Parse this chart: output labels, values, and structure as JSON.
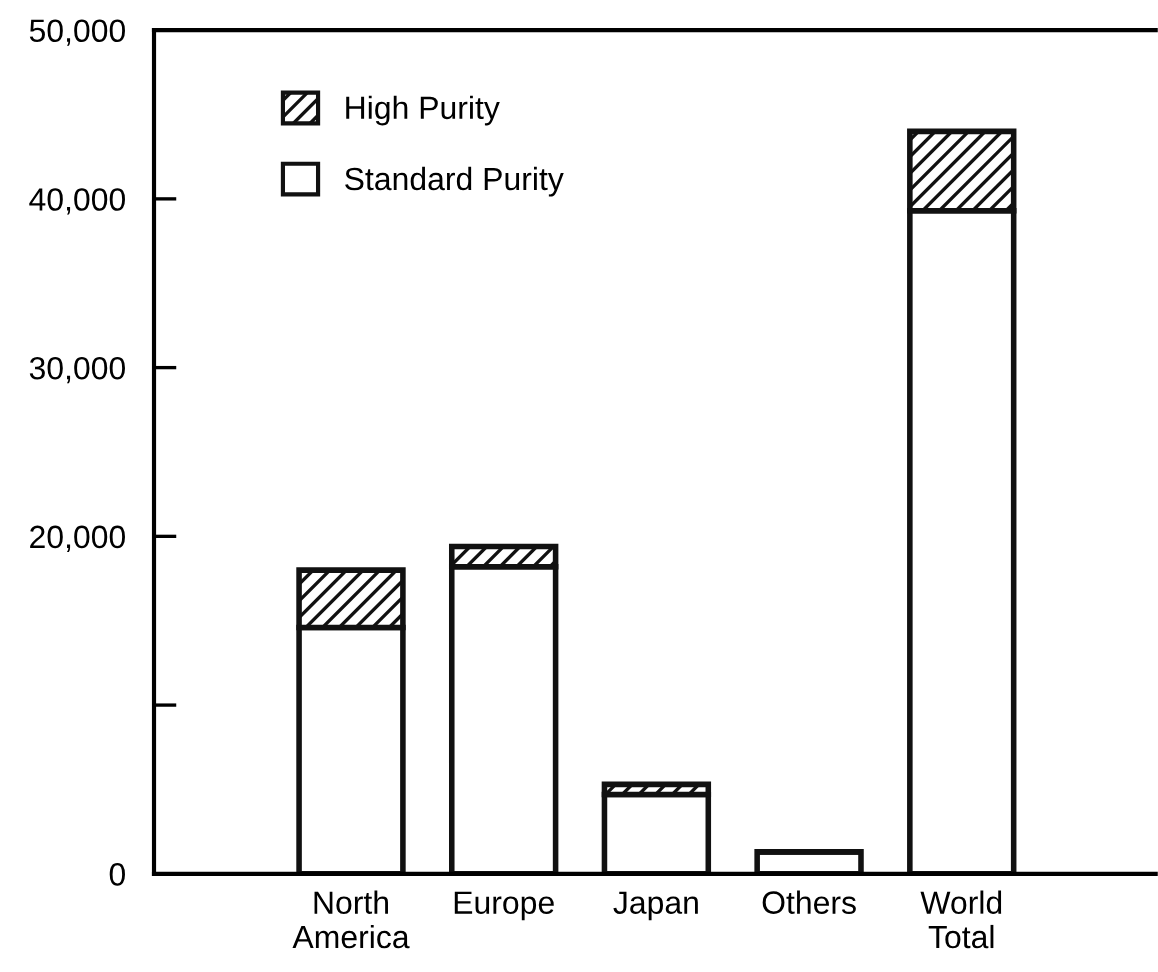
{
  "chart_data": {
    "type": "bar",
    "stacked": true,
    "categories": [
      "North\nAmerica",
      "Europe",
      "Japan",
      "Others",
      "World\nTotal"
    ],
    "series": [
      {
        "name": "Standard Purity",
        "color": "#ffffff",
        "values": [
          14600,
          18200,
          4700,
          1300,
          39300
        ]
      },
      {
        "name": "High Purity",
        "color": "#111111",
        "values": [
          3400,
          1200,
          600,
          0,
          4700
        ]
      }
    ],
    "ylim": [
      0,
      50000
    ],
    "yticks": [
      0,
      {
        "value": 10000,
        "label": null
      },
      {
        "value": 20000,
        "label": "20,000"
      },
      {
        "value": 30000,
        "label": "30,000"
      },
      {
        "value": 40000,
        "label": "40,000"
      },
      {
        "value": 50000,
        "label": "50,000"
      }
    ],
    "grid": false,
    "legend": "top left"
  }
}
